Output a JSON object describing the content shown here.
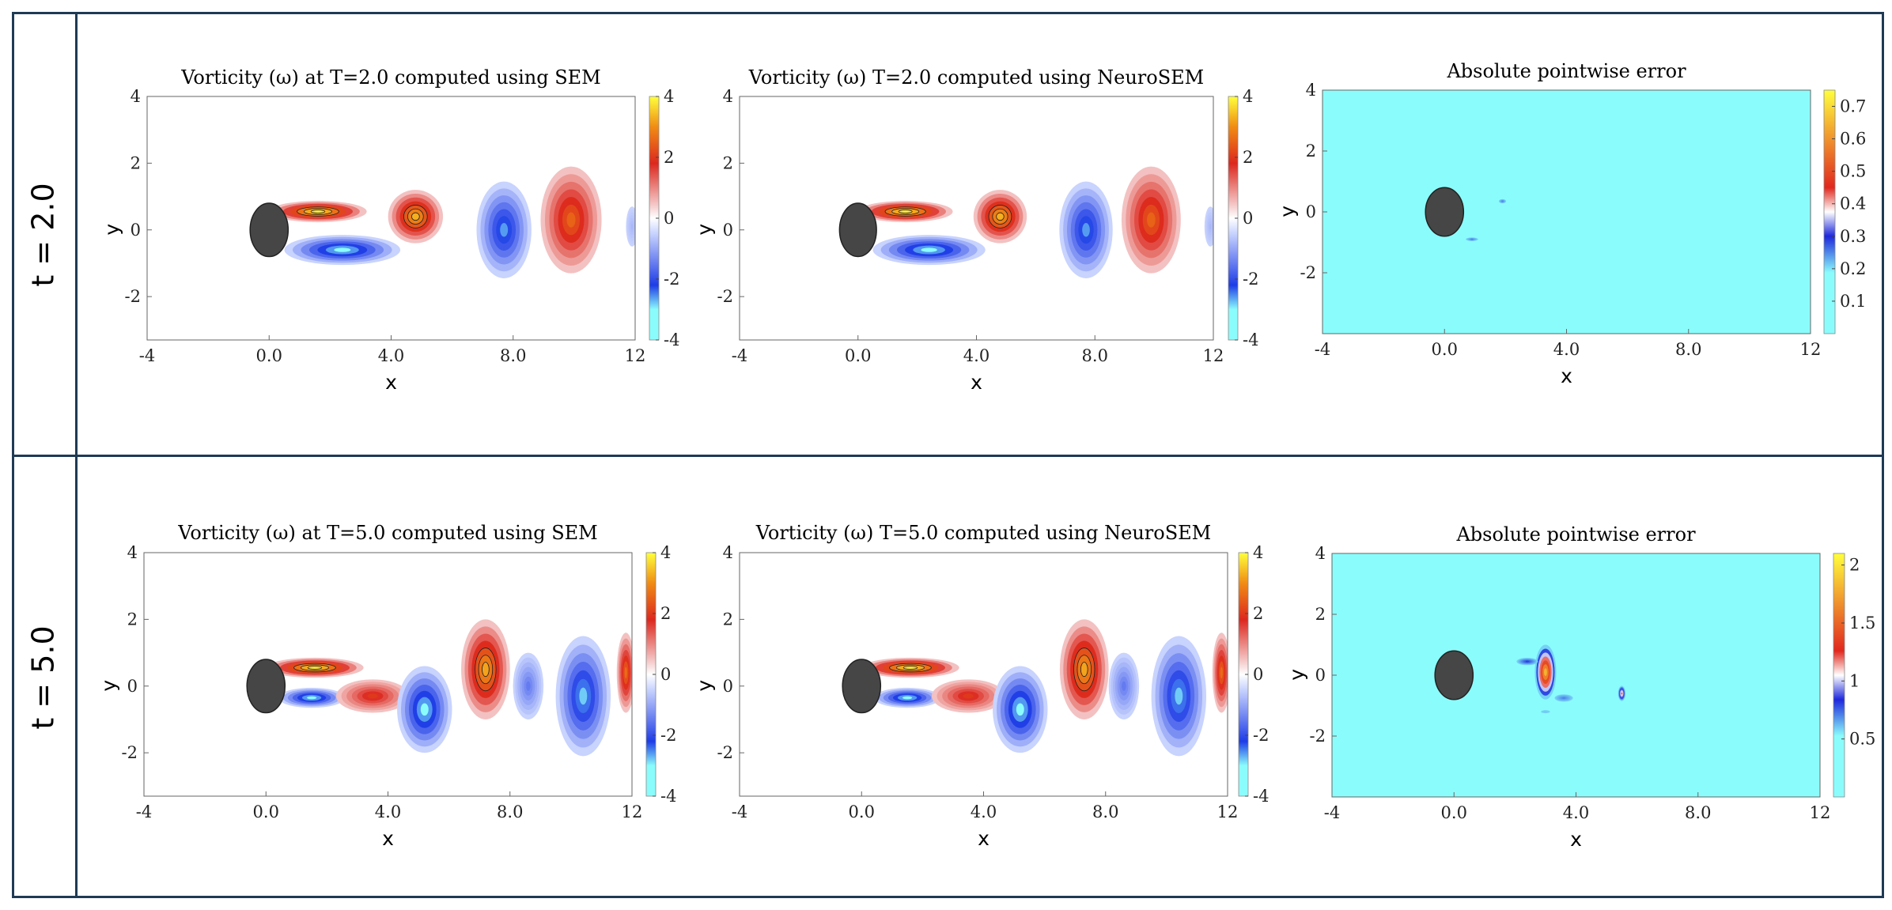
{
  "rows": [
    {
      "label": "t = 2.0"
    },
    {
      "label": "t = 5.0"
    }
  ],
  "chart_data": [
    {
      "type": "heatmap",
      "title": "Vorticity (ω) at T=2.0 computed using SEM",
      "xlabel": "x",
      "ylabel": "y",
      "xticks": [
        "-4",
        "0.0",
        "4.0",
        "8.0",
        "12"
      ],
      "yticks": [
        "4",
        "2",
        "0",
        "-2"
      ],
      "xlim": [
        -4,
        12
      ],
      "ylim": [
        -3.3,
        4
      ],
      "colorbar": {
        "ticks": [
          "4",
          "2",
          "0",
          "-2",
          "-4"
        ],
        "min": -4,
        "max": 4,
        "kind": "vorticity"
      },
      "cylinder": {
        "x": 0,
        "y": 0,
        "r": 0.8
      },
      "vortices": [
        {
          "x": 1.6,
          "y": 0.55,
          "rx": 1.6,
          "ry": 0.32,
          "value": 3.8
        },
        {
          "x": 4.8,
          "y": 0.4,
          "rx": 0.9,
          "ry": 0.8,
          "value": 3.3
        },
        {
          "x": 2.4,
          "y": -0.6,
          "rx": 1.9,
          "ry": 0.45,
          "value": -3.0
        },
        {
          "x": 7.7,
          "y": 0.0,
          "rx": 0.9,
          "ry": 1.45,
          "value": -2.6
        },
        {
          "x": 9.9,
          "y": 0.3,
          "rx": 1.0,
          "ry": 1.6,
          "value": 2.5
        },
        {
          "x": 11.9,
          "y": 0.1,
          "rx": 0.2,
          "ry": 0.6,
          "value": -0.8
        }
      ]
    },
    {
      "type": "heatmap",
      "title": "Vorticity (ω) T=2.0 computed using NeuroSEM",
      "xlabel": "x",
      "ylabel": "y",
      "xticks": [
        "-4",
        "0.0",
        "4.0",
        "8.0",
        "12"
      ],
      "yticks": [
        "4",
        "2",
        "0",
        "-2"
      ],
      "xlim": [
        -4,
        12
      ],
      "ylim": [
        -3.3,
        4
      ],
      "colorbar": {
        "ticks": [
          "4",
          "2",
          "0",
          "-2",
          "-4"
        ],
        "min": -4,
        "max": 4,
        "kind": "vorticity"
      },
      "cylinder": {
        "x": 0,
        "y": 0,
        "r": 0.8
      },
      "vortices": [
        {
          "x": 1.6,
          "y": 0.55,
          "rx": 1.6,
          "ry": 0.32,
          "value": 3.8
        },
        {
          "x": 4.8,
          "y": 0.4,
          "rx": 0.9,
          "ry": 0.8,
          "value": 3.3
        },
        {
          "x": 2.4,
          "y": -0.6,
          "rx": 1.9,
          "ry": 0.45,
          "value": -3.0
        },
        {
          "x": 7.7,
          "y": 0.0,
          "rx": 0.9,
          "ry": 1.45,
          "value": -2.6
        },
        {
          "x": 9.9,
          "y": 0.3,
          "rx": 1.0,
          "ry": 1.6,
          "value": 2.5
        },
        {
          "x": 11.9,
          "y": 0.1,
          "rx": 0.2,
          "ry": 0.6,
          "value": -0.8
        }
      ]
    },
    {
      "type": "heatmap",
      "title": "Absolute pointwise error",
      "xlabel": "x",
      "ylabel": "y",
      "xticks": [
        "-4",
        "0.0",
        "4.0",
        "8.0",
        "12"
      ],
      "yticks": [
        "4",
        "2",
        "0",
        "-2"
      ],
      "xlim": [
        -4,
        12
      ],
      "ylim": [
        -4,
        4
      ],
      "colorbar": {
        "ticks": [
          "0.7",
          "0.6",
          "0.5",
          "0.4",
          "0.3",
          "0.2",
          "0.1"
        ],
        "min": 0,
        "max": 0.75,
        "kind": "error"
      },
      "cylinder": {
        "x": 0,
        "y": 0,
        "r": 0.8
      },
      "vortices": [
        {
          "x": 1.9,
          "y": 0.35,
          "rx": 0.12,
          "ry": 0.07,
          "value": 0.25
        },
        {
          "x": 0.9,
          "y": -0.9,
          "rx": 0.2,
          "ry": 0.06,
          "value": 0.25
        }
      ]
    },
    {
      "type": "heatmap",
      "title": "Vorticity (ω) at T=5.0 computed using SEM",
      "xlabel": "x",
      "ylabel": "y",
      "xticks": [
        "-4",
        "0.0",
        "4.0",
        "8.0",
        "12"
      ],
      "yticks": [
        "4",
        "2",
        "0",
        "-2"
      ],
      "xlim": [
        -4,
        12
      ],
      "ylim": [
        -3.3,
        4
      ],
      "colorbar": {
        "ticks": [
          "4",
          "2",
          "0",
          "-2",
          "-4"
        ],
        "min": -4,
        "max": 4,
        "kind": "vorticity"
      },
      "cylinder": {
        "x": 0,
        "y": 0,
        "r": 0.8
      },
      "vortices": [
        {
          "x": 1.6,
          "y": 0.55,
          "rx": 1.6,
          "ry": 0.3,
          "value": 3.8
        },
        {
          "x": 1.5,
          "y": -0.35,
          "rx": 1.1,
          "ry": 0.3,
          "value": -3.0
        },
        {
          "x": 3.5,
          "y": -0.3,
          "rx": 1.2,
          "ry": 0.5,
          "value": 2.0
        },
        {
          "x": 5.2,
          "y": -0.7,
          "rx": 0.9,
          "ry": 1.3,
          "value": -3.0
        },
        {
          "x": 7.2,
          "y": 0.5,
          "rx": 0.8,
          "ry": 1.5,
          "value": 3.2
        },
        {
          "x": 8.6,
          "y": 0.0,
          "rx": 0.5,
          "ry": 1.0,
          "value": -1.5
        },
        {
          "x": 10.4,
          "y": -0.3,
          "rx": 0.9,
          "ry": 1.8,
          "value": -2.8
        },
        {
          "x": 11.8,
          "y": 0.4,
          "rx": 0.3,
          "ry": 1.2,
          "value": 2.6
        }
      ]
    },
    {
      "type": "heatmap",
      "title": "Vorticity (ω) T=5.0 computed using NeuroSEM",
      "xlabel": "x",
      "ylabel": "y",
      "xticks": [
        "-4",
        "0.0",
        "4.0",
        "8.0",
        "12"
      ],
      "yticks": [
        "4",
        "2",
        "0",
        "-2"
      ],
      "xlim": [
        -4,
        12
      ],
      "ylim": [
        -3.3,
        4
      ],
      "colorbar": {
        "ticks": [
          "4",
          "2",
          "0",
          "-2",
          "-4"
        ],
        "min": -4,
        "max": 4,
        "kind": "vorticity"
      },
      "cylinder": {
        "x": 0,
        "y": 0,
        "r": 0.8
      },
      "vortices": [
        {
          "x": 1.6,
          "y": 0.55,
          "rx": 1.6,
          "ry": 0.3,
          "value": 3.8
        },
        {
          "x": 1.5,
          "y": -0.35,
          "rx": 1.1,
          "ry": 0.3,
          "value": -3.0
        },
        {
          "x": 3.5,
          "y": -0.3,
          "rx": 1.2,
          "ry": 0.5,
          "value": 2.0
        },
        {
          "x": 5.2,
          "y": -0.7,
          "rx": 0.9,
          "ry": 1.3,
          "value": -3.0
        },
        {
          "x": 7.3,
          "y": 0.5,
          "rx": 0.8,
          "ry": 1.5,
          "value": 3.2
        },
        {
          "x": 8.6,
          "y": 0.0,
          "rx": 0.5,
          "ry": 1.0,
          "value": -1.5
        },
        {
          "x": 10.4,
          "y": -0.3,
          "rx": 0.9,
          "ry": 1.8,
          "value": -2.8
        },
        {
          "x": 11.8,
          "y": 0.4,
          "rx": 0.3,
          "ry": 1.2,
          "value": 2.6
        }
      ]
    },
    {
      "type": "heatmap",
      "title": "Absolute pointwise error",
      "xlabel": "x",
      "ylabel": "y",
      "xticks": [
        "-4",
        "0.0",
        "4.0",
        "8.0",
        "12"
      ],
      "yticks": [
        "4",
        "2",
        "0",
        "-2"
      ],
      "xlim": [
        -4,
        12
      ],
      "ylim": [
        -4,
        4
      ],
      "colorbar": {
        "ticks": [
          "2",
          "1.5",
          "1",
          "0.5"
        ],
        "min": 0,
        "max": 2.1,
        "kind": "error"
      },
      "cylinder": {
        "x": 0,
        "y": 0,
        "r": 0.8
      },
      "vortices": [
        {
          "x": 3.0,
          "y": 0.1,
          "rx": 0.35,
          "ry": 0.9,
          "value": 1.8
        },
        {
          "x": 2.4,
          "y": 0.45,
          "rx": 0.35,
          "ry": 0.12,
          "value": 0.8
        },
        {
          "x": 3.6,
          "y": -0.75,
          "rx": 0.3,
          "ry": 0.12,
          "value": 0.7
        },
        {
          "x": 5.5,
          "y": -0.6,
          "rx": 0.12,
          "ry": 0.25,
          "value": 1.2
        },
        {
          "x": 3.0,
          "y": -1.2,
          "rx": 0.15,
          "ry": 0.05,
          "value": 0.6
        }
      ]
    }
  ]
}
